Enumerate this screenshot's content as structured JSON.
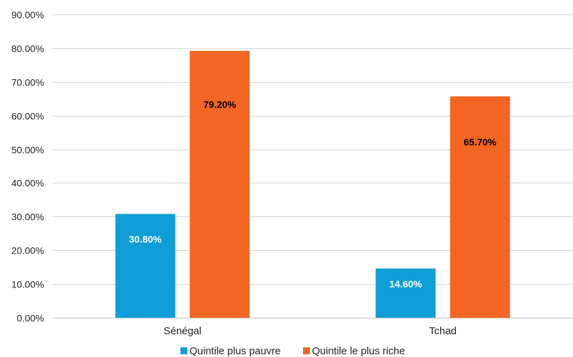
{
  "chart_data": {
    "type": "bar",
    "title": "",
    "xlabel": "",
    "ylabel": "",
    "categories": [
      "Sénégal",
      "Tchad"
    ],
    "series": [
      {
        "name": "Quintile plus pauvre",
        "color": "#0f9ed5",
        "label_color": "#ffffff",
        "values": [
          30.8,
          14.6
        ],
        "labels": [
          "30.80%",
          "14.60%"
        ]
      },
      {
        "name": "Quintile le plus riche",
        "color": "#f26522",
        "label_color": "#000000",
        "values": [
          79.2,
          65.7
        ],
        "labels": [
          "79.20%",
          "65.70%"
        ]
      }
    ],
    "ylim": [
      0,
      90
    ],
    "yticks": [
      0,
      10,
      20,
      30,
      40,
      50,
      60,
      70,
      80,
      90
    ],
    "ytick_labels": [
      "0.00%",
      "10.00%",
      "20.00%",
      "30.00%",
      "40.00%",
      "50.00%",
      "60.00%",
      "70.00%",
      "80.00%",
      "90.00%"
    ],
    "grid": true,
    "legend_position": "bottom"
  }
}
